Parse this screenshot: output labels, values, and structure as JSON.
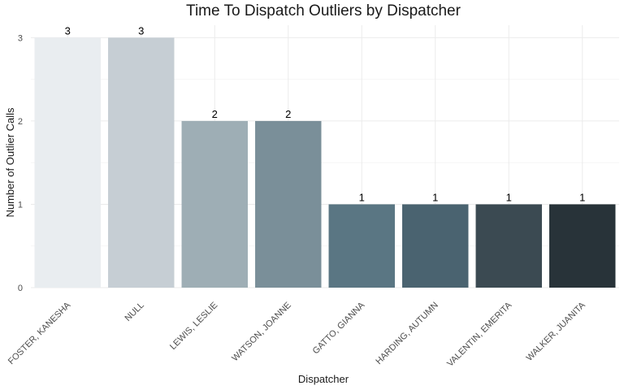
{
  "chart_data": {
    "type": "bar",
    "title": "Time To Dispatch Outliers by Dispatcher",
    "xlabel": "Dispatcher",
    "ylabel": "Number of Outlier Calls",
    "categories": [
      "FOSTER, KANESHA",
      "NULL",
      "LEWIS, LESLIE",
      "WATSON, JOANNE",
      "GATTO, GIANNA",
      "HARDING, AUTUMN",
      "VALENTIN, EMERITA",
      "WALKER, JUANITA"
    ],
    "values": [
      3,
      3,
      2,
      2,
      1,
      1,
      1,
      1
    ],
    "colors": [
      "#e9edf0",
      "#c6ced4",
      "#9eaeb5",
      "#7a8f99",
      "#5a7683",
      "#4a6370",
      "#3b4a52",
      "#283339"
    ],
    "yticks": [
      0,
      1,
      2,
      3
    ],
    "ylim": [
      0,
      3.15
    ],
    "grid": true,
    "legend": "none"
  }
}
